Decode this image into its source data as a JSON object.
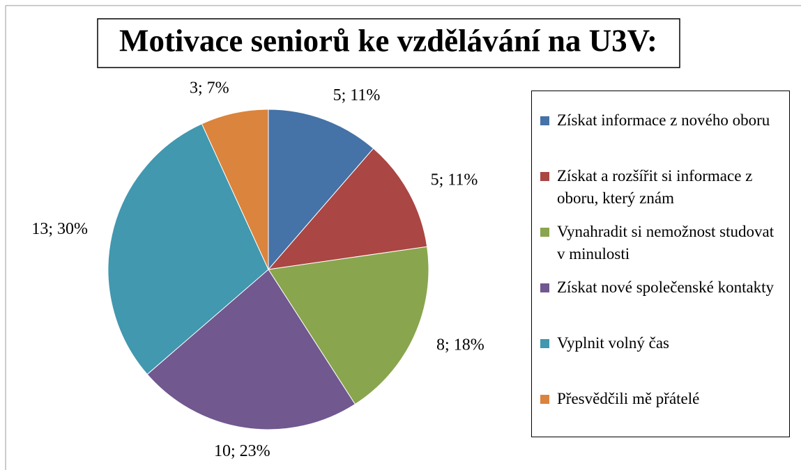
{
  "chart_data": {
    "type": "pie",
    "title": "Motivace seniorů ke vzdělávání na U3V:",
    "categories": [
      "Získat informace z nového oboru",
      "Získat a rozšířit si informace z oboru, který znám",
      "Vynahradit si nemožnost studovat v minulosti",
      "Získat nové společenské kontakty",
      "Vyplnit volný čas",
      "Přesvědčili mě přátelé"
    ],
    "values": [
      5,
      5,
      8,
      10,
      13,
      3
    ],
    "value_labels": [
      "5; 11%",
      "5; 11%",
      "8; 18%",
      "10; 23%",
      "13; 30%",
      "3; 7%"
    ],
    "colors": [
      "#4572a7",
      "#aa4643",
      "#89a54e",
      "#71588f",
      "#4198af",
      "#db843d"
    ],
    "legend": "right"
  }
}
